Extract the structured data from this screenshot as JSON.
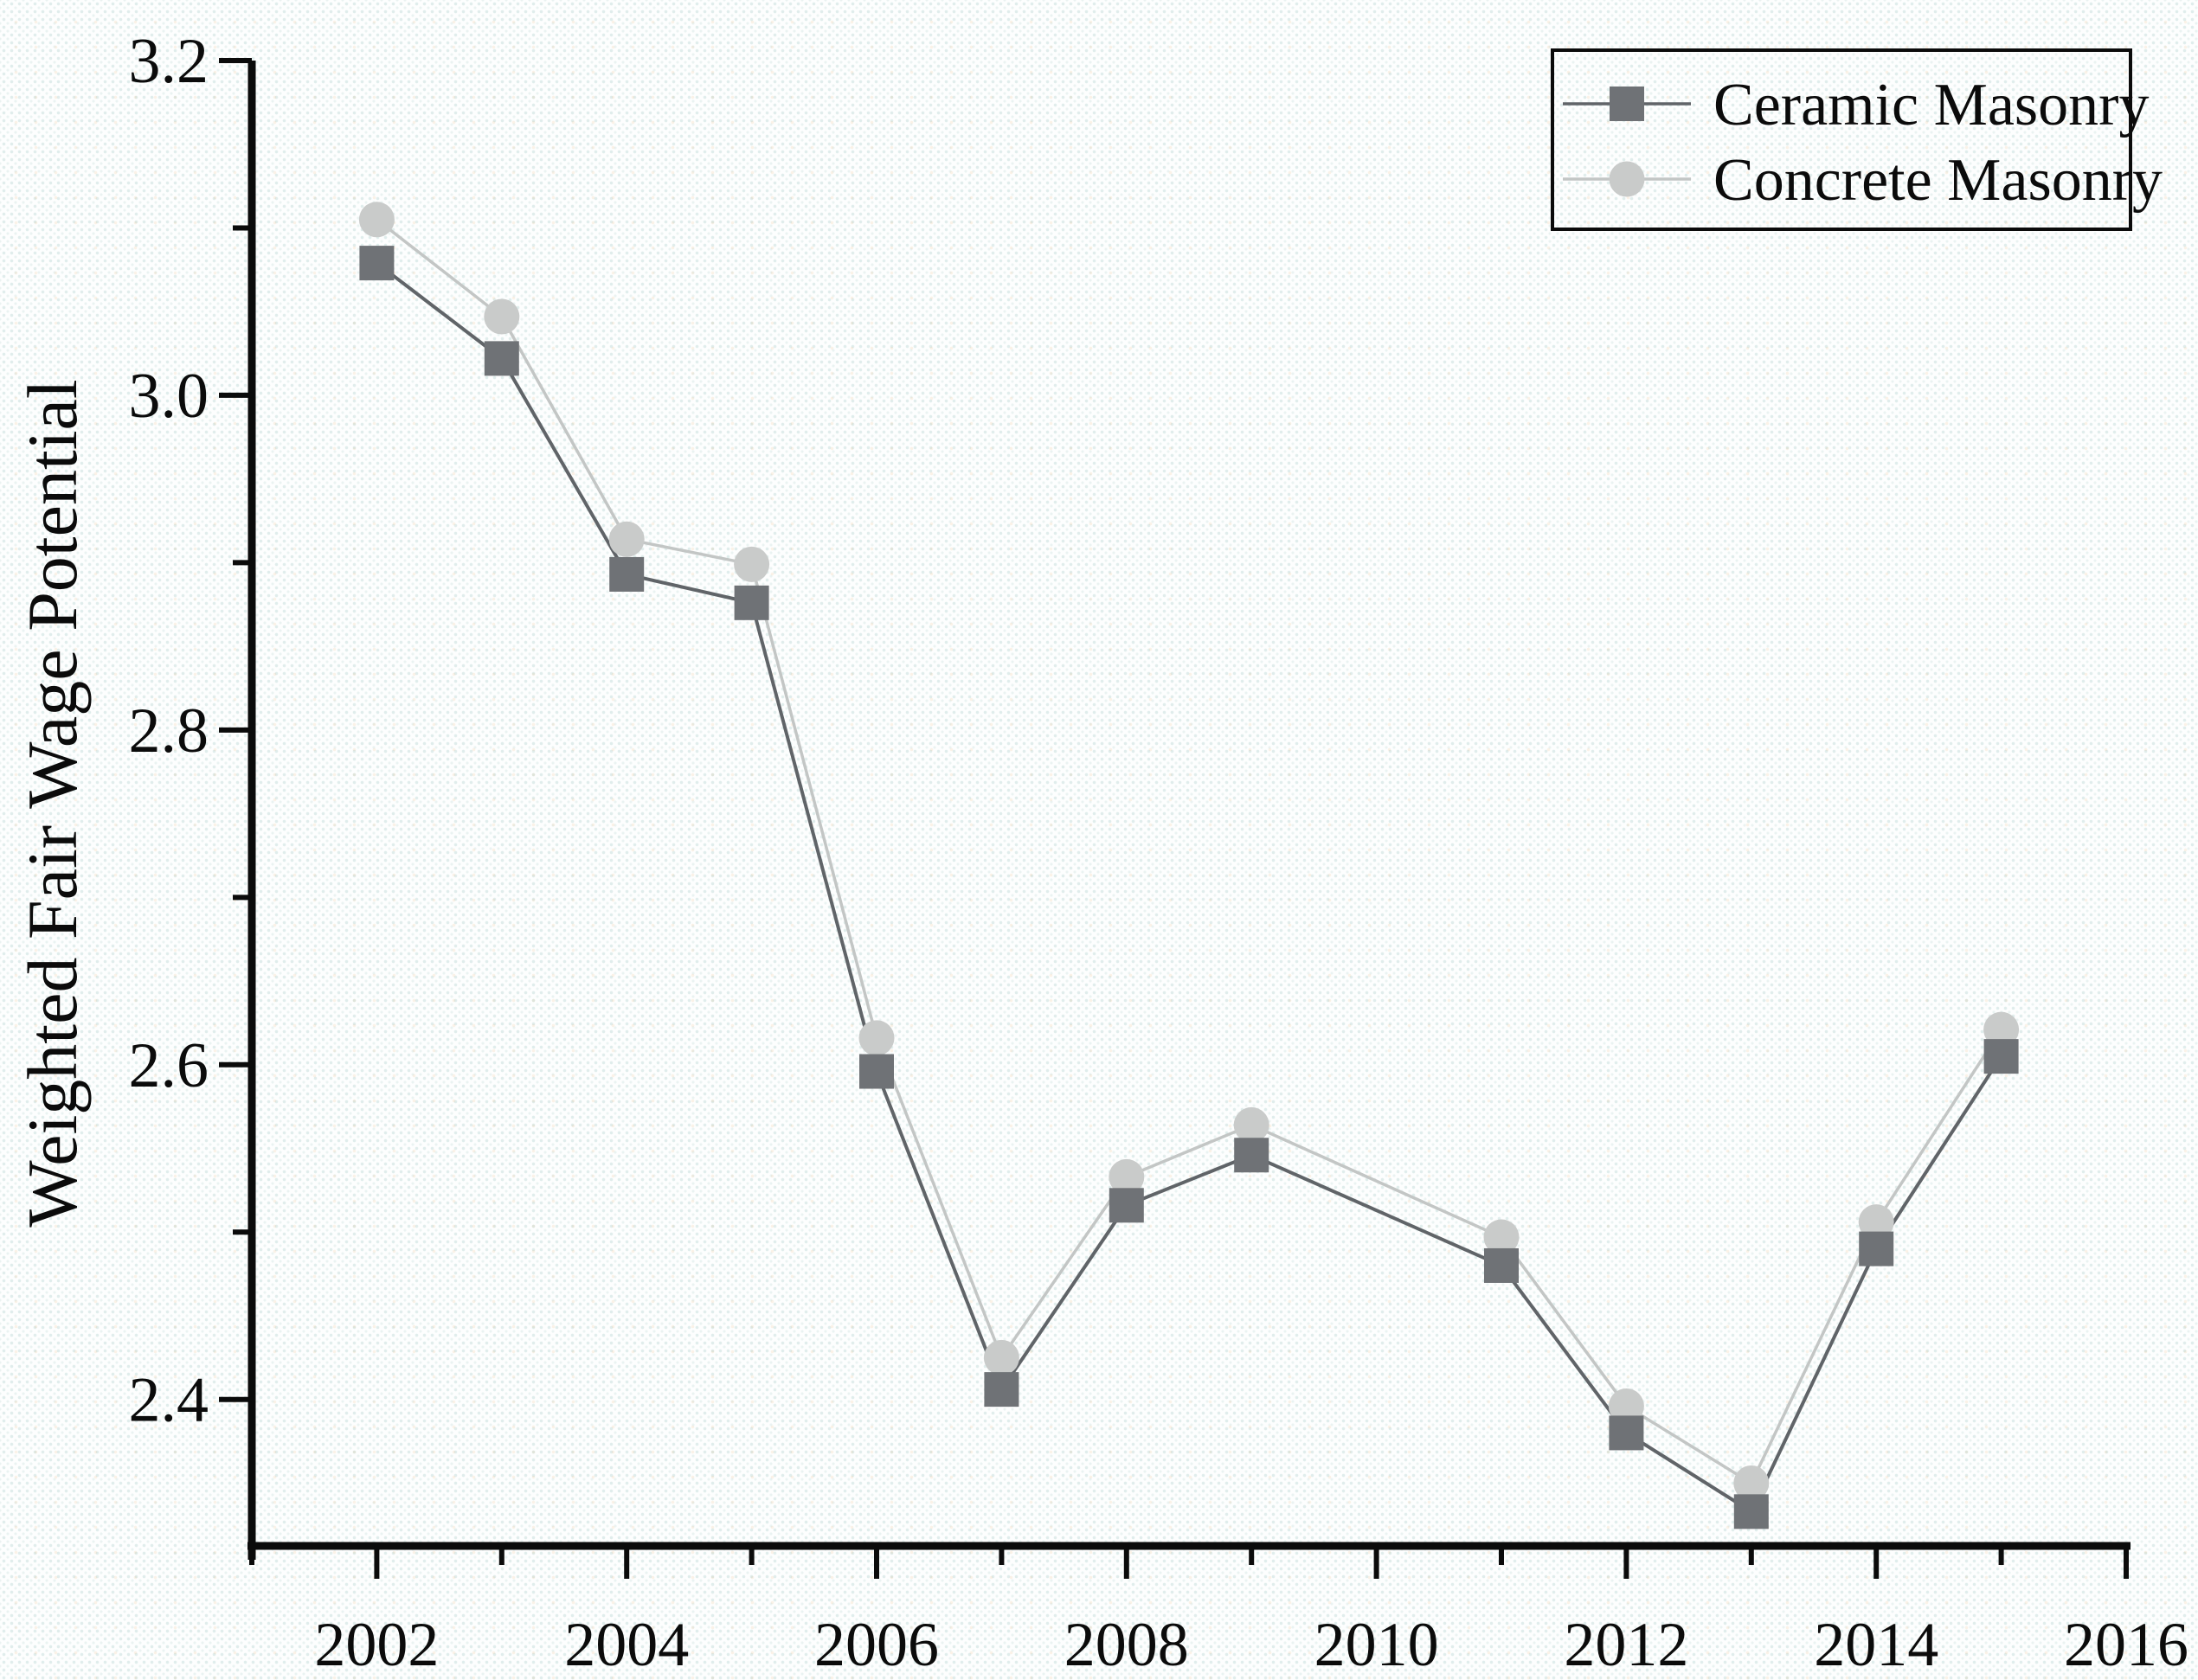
{
  "figure": {
    "ylabel": "Weighted Fair Wage Potential",
    "xlabel": "",
    "title": ""
  },
  "legend": {
    "items": [
      {
        "label": "Ceramic Masonry",
        "marker": "square-marker-icon"
      },
      {
        "label": "Concrete Masonry",
        "marker": "circle-marker-icon"
      }
    ]
  },
  "colors": {
    "axis": "#0b0b0b",
    "text": "#0b0b0b",
    "ceramic_marker": "#6f7276",
    "ceramic_line": "#606468",
    "concrete_marker": "#c9cbca",
    "concrete_line": "#c3c6c5",
    "legend_border": "#0b0b0b"
  },
  "chart_data": {
    "type": "line",
    "x": [
      2002,
      2003,
      2004,
      2005,
      2006,
      2007,
      2008,
      2009,
      2011,
      2012,
      2013,
      2014,
      2015
    ],
    "series": [
      {
        "name": "Ceramic Masonry",
        "marker": "square",
        "values": [
          3.079,
          3.022,
          2.893,
          2.876,
          2.596,
          2.406,
          2.516,
          2.546,
          2.48,
          2.38,
          2.333,
          2.49,
          2.605
        ]
      },
      {
        "name": "Concrete Masonry",
        "marker": "circle",
        "values": [
          3.105,
          3.047,
          2.914,
          2.899,
          2.616,
          2.425,
          2.533,
          2.564,
          2.497,
          2.396,
          2.35,
          2.506,
          2.621
        ]
      }
    ],
    "title": "",
    "xlabel": "",
    "ylabel": "Weighted Fair Wage Potential",
    "xlim": [
      2001,
      2016
    ],
    "ylim": [
      2.3125,
      3.2
    ],
    "x_major_ticks": [
      2002,
      2004,
      2006,
      2008,
      2010,
      2012,
      2014,
      2016
    ],
    "x_minor_ticks": [
      2001,
      2003,
      2005,
      2007,
      2009,
      2011,
      2013,
      2015
    ],
    "y_major_ticks": [
      2.4,
      2.6,
      2.8,
      3.0,
      3.2
    ],
    "y_minor_ticks": [
      2.5,
      2.7,
      2.9,
      3.1
    ],
    "grid": false,
    "legend_position": "top-right"
  }
}
